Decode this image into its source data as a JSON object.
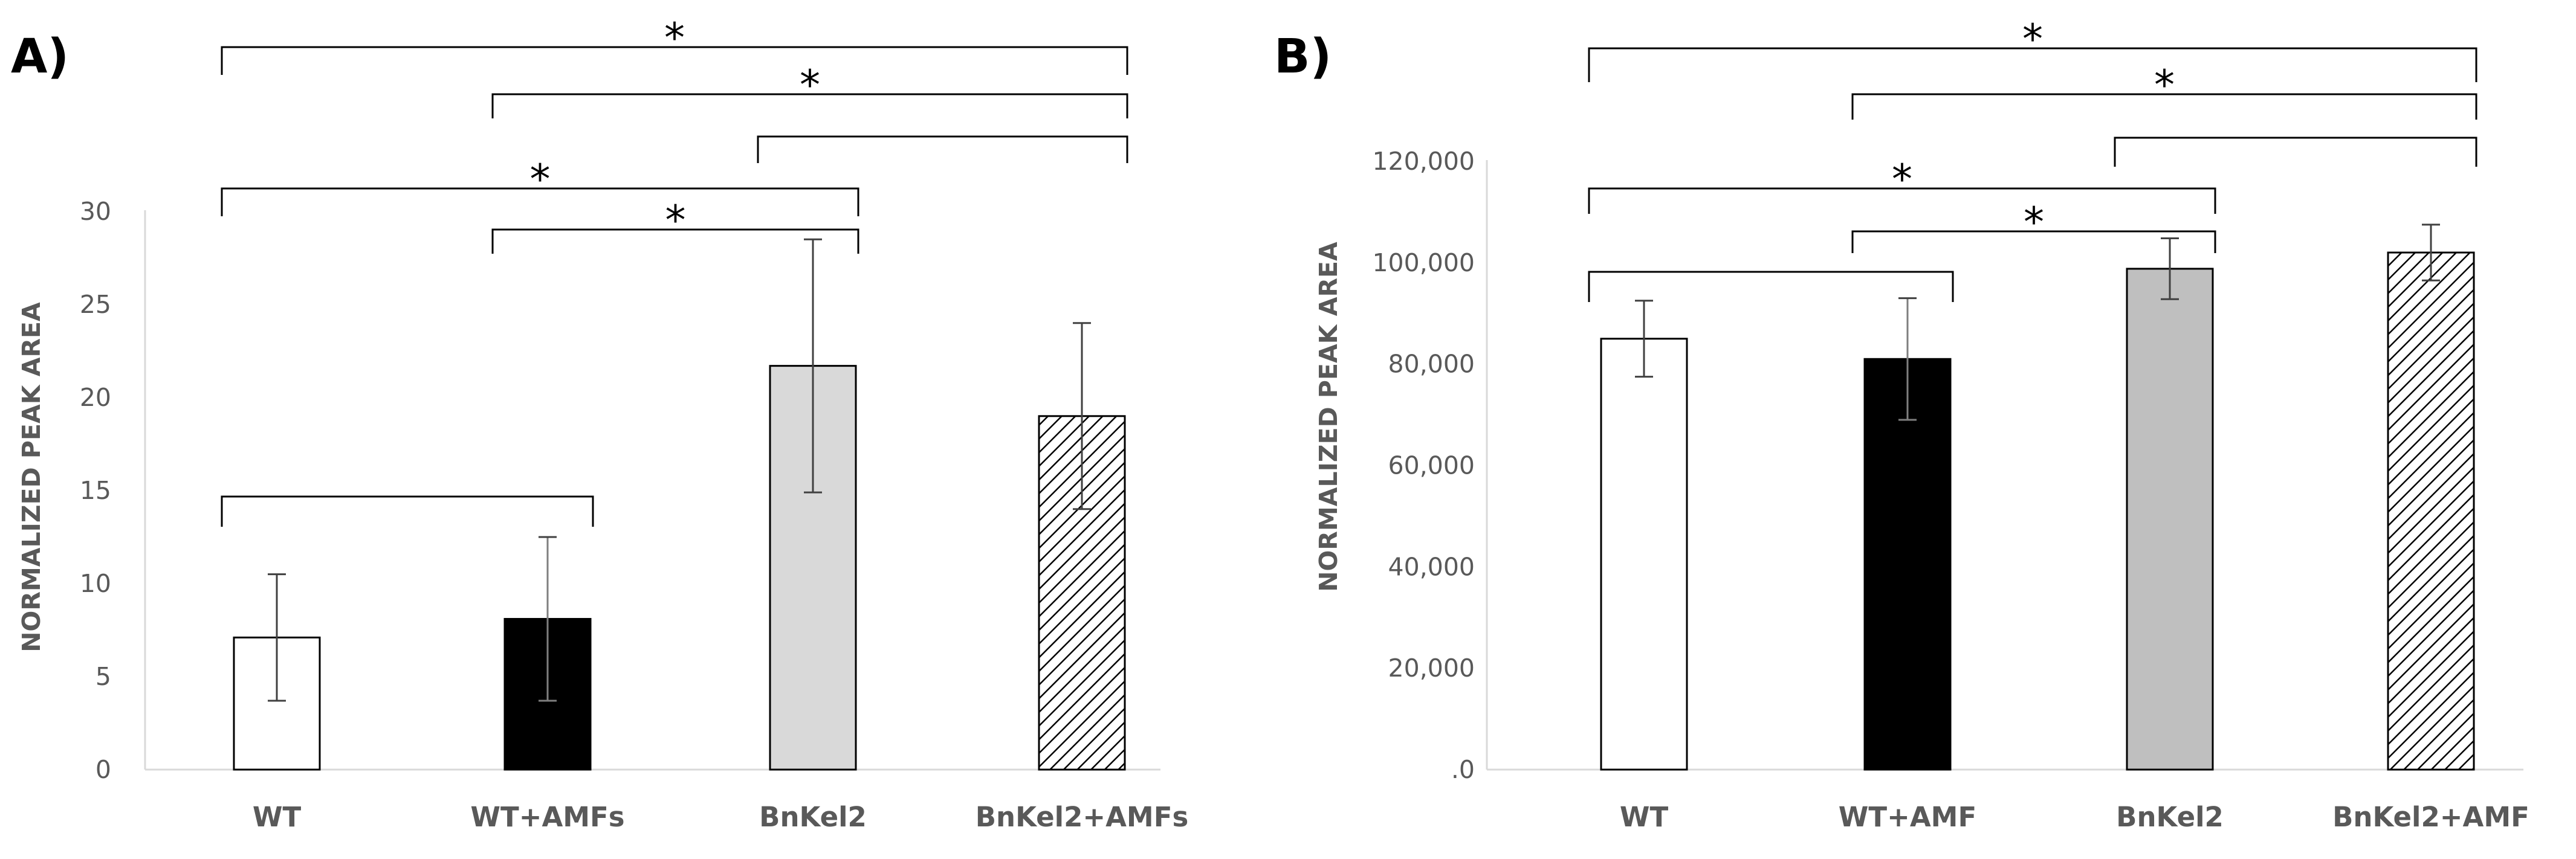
{
  "chart_data": [
    {
      "panel": "A)",
      "type": "bar",
      "ylabel": "NORMALIZED PEAK AREA",
      "xlabel": "",
      "ylim": [
        0,
        30
      ],
      "yticks": [
        0,
        5,
        10,
        15,
        20,
        25,
        30
      ],
      "ytick_labels": [
        "0",
        "5",
        "10",
        "15",
        "20",
        "25",
        "30"
      ],
      "categories": [
        "WT",
        "WT+AMFs",
        "BnKel2",
        "BnKel2+AMFs"
      ],
      "values": [
        7.1,
        8.1,
        21.7,
        19.0
      ],
      "errors": [
        3.4,
        4.4,
        6.8,
        5.0
      ],
      "bar_styles": [
        "white",
        "black",
        "lightgray",
        "hatched"
      ],
      "comparisons": [
        {
          "from": 0,
          "to": 1,
          "label": ""
        },
        {
          "from": 1,
          "to": 2,
          "label": "*"
        },
        {
          "from": 0,
          "to": 2,
          "label": "*"
        },
        {
          "from": 2,
          "to": 3,
          "label": ""
        },
        {
          "from": 1,
          "to": 3,
          "label": "*"
        },
        {
          "from": 0,
          "to": 3,
          "label": "*"
        }
      ]
    },
    {
      "panel": "B)",
      "type": "bar",
      "ylabel": "NORMALIZED PEAK AREA",
      "xlabel": "",
      "ylim": [
        0,
        120000
      ],
      "yticks": [
        0,
        20000,
        40000,
        60000,
        80000,
        100000,
        120000
      ],
      "ytick_labels": [
        ".0",
        "20,000",
        "40,000",
        "60,000",
        "80,000",
        "100,000",
        "120,000"
      ],
      "categories": [
        "WT",
        "WT+AMF",
        "BnKel2",
        "BnKel2+AMF"
      ],
      "values": [
        85000,
        81000,
        98800,
        102000
      ],
      "errors": [
        7500,
        12000,
        6000,
        5500
      ],
      "bar_styles": [
        "white",
        "black",
        "gray",
        "hatched"
      ],
      "comparisons": [
        {
          "from": 0,
          "to": 1,
          "label": ""
        },
        {
          "from": 1,
          "to": 2,
          "label": "*"
        },
        {
          "from": 0,
          "to": 2,
          "label": "*"
        },
        {
          "from": 2,
          "to": 3,
          "label": ""
        },
        {
          "from": 1,
          "to": 3,
          "label": "*"
        },
        {
          "from": 0,
          "to": 3,
          "label": "*"
        }
      ]
    }
  ],
  "colors": {
    "axis": "#d9d9d9",
    "text": "#595959",
    "bar_outline": "#000000",
    "white": "#ffffff",
    "black": "#000000",
    "lightgray": "#d9d9d9",
    "gray": "#bfbfbf",
    "hatch": "#000000",
    "error_bar": "#404040",
    "bracket": "#000000"
  }
}
